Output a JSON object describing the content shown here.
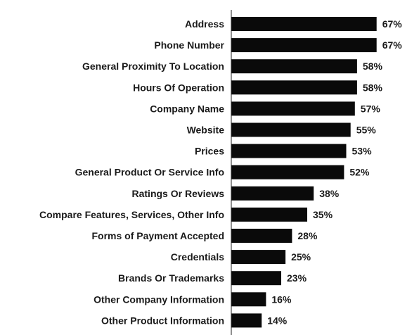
{
  "chart_data": {
    "type": "bar",
    "orientation": "horizontal",
    "categories": [
      "Address",
      "Phone Number",
      "General Proximity To Location",
      "Hours Of Operation",
      "Company Name",
      "Website",
      "Prices",
      "General Product Or Service Info",
      "Ratings Or Reviews",
      "Compare Features, Services, Other Info",
      "Forms of Payment Accepted",
      "Credentials",
      "Brands Or Trademarks",
      "Other Company Information",
      "Other Product Information"
    ],
    "values": [
      67,
      67,
      58,
      58,
      57,
      55,
      53,
      52,
      38,
      35,
      28,
      25,
      23,
      16,
      14
    ],
    "value_labels": [
      "67%",
      "67%",
      "58%",
      "58%",
      "57%",
      "55%",
      "53%",
      "52%",
      "38%",
      "35%",
      "28%",
      "25%",
      "23%",
      "16%",
      "14%"
    ],
    "xlim": [
      0,
      70
    ],
    "grid": false,
    "bar_color": "#0a0a0a",
    "axis_color": "#222222"
  }
}
